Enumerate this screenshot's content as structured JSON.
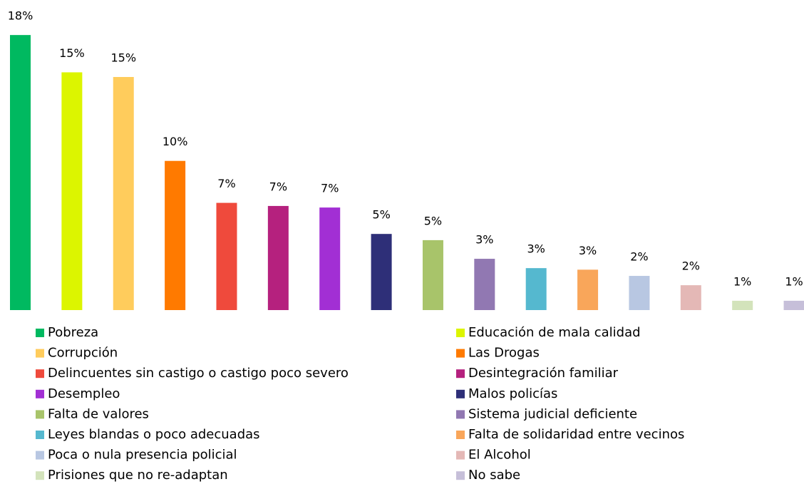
{
  "chart_data": {
    "type": "bar",
    "categories": [
      "Pobreza",
      "Educación de mala calidad",
      "Corrupción",
      "Las Drogas",
      "Delincuentes sin castigo o castigo poco severo",
      "Desintegración familiar",
      "Desempleo",
      "Malos policías",
      "Falta de valores",
      "Sistema judicial deficiente",
      "Leyes blandas o poco adecuadas",
      "Falta de solidaridad entre vecinos",
      "Poca o nula presencia policial",
      "El Alcohol",
      "Prisiones que no re-adaptan",
      "No sabe"
    ],
    "values": [
      17.7,
      15.3,
      15.0,
      9.6,
      6.9,
      6.7,
      6.6,
      4.9,
      4.5,
      3.3,
      2.7,
      2.6,
      2.2,
      1.6,
      0.6,
      0.6
    ],
    "value_labels": [
      "18%",
      "15%",
      "15%",
      "10%",
      "7%",
      "7%",
      "7%",
      "5%",
      "5%",
      "3%",
      "3%",
      "3%",
      "2%",
      "2%",
      "1%",
      "1%"
    ],
    "colors": [
      "#00b960",
      "#dcf500",
      "#ffcc5c",
      "#ff7a00",
      "#ef4a3c",
      "#b5217e",
      "#a22fd4",
      "#2e2f78",
      "#a8c46a",
      "#9178b2",
      "#55b8cf",
      "#f9a65a",
      "#b8c7e2",
      "#e4b8b6",
      "#d3e3bb",
      "#c6bfd9"
    ]
  }
}
